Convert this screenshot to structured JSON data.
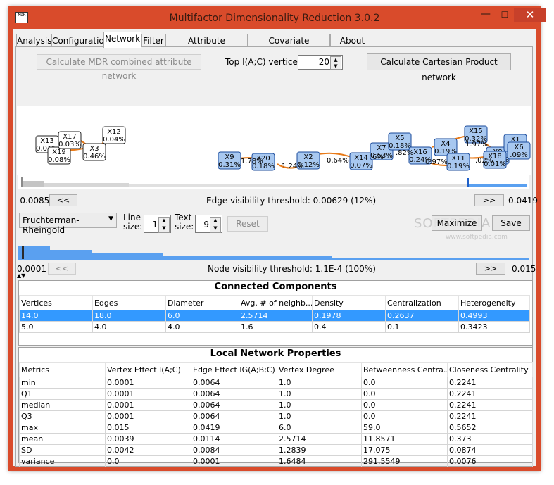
{
  "window": {
    "icon_text": "MDR",
    "title": "Multifactor Dimensionality Reduction 3.0.2",
    "minimize_glyph": "—",
    "maximize_glyph": "☐",
    "close_glyph": "✕"
  },
  "tabs": [
    {
      "label": "Analysis"
    },
    {
      "label": "Configuration"
    },
    {
      "label": "Network",
      "active": true
    },
    {
      "label": "Filter"
    },
    {
      "label": "Attribute Construction"
    },
    {
      "label": "Covariate Adjustment"
    },
    {
      "label": "About MDR"
    }
  ],
  "network": {
    "combined_button": "Calculate MDR combined attribute network",
    "top_vertices_label": "Top I(A;C) vertices:",
    "top_vertices_value": "20",
    "cartesian_button": "Calculate Cartesian Product network",
    "nodes": [
      {
        "name": "X13",
        "value": "0.01%"
      },
      {
        "name": "X19",
        "value": "0.08%"
      },
      {
        "name": "X17",
        "value": "0.03%"
      },
      {
        "name": "X3",
        "value": "0.46%"
      },
      {
        "name": "X12",
        "value": "0.04%"
      },
      {
        "name": "X9",
        "value": "0.31%"
      },
      {
        "name": "X20",
        "value": "0.18%"
      },
      {
        "name": "X2",
        "value": "0.12%"
      },
      {
        "name": "X14",
        "value": "0.07%"
      },
      {
        "name": "X7",
        "value": "0.53%"
      },
      {
        "name": "X5",
        "value": "0.18%"
      },
      {
        "name": "X16",
        "value": "0.24%"
      },
      {
        "name": "X4",
        "value": "0.19%"
      },
      {
        "name": "X15",
        "value": "0.32%"
      },
      {
        "name": "X11",
        "value": "0.19%"
      },
      {
        "name": "X8",
        "value": "0.52%"
      },
      {
        "name": "X18",
        "value": "0.01%"
      },
      {
        "name": "X1",
        "value": "0.0"
      },
      {
        "name": "X6",
        "value": ".09%"
      }
    ],
    "edge_labels": [
      "1.78%",
      "1.24%",
      "0.64%",
      "6%",
      ".82%",
      "0.97%",
      "1.97%",
      ".02%"
    ],
    "edge_min": "-0.0085",
    "edge_max": "0.0419",
    "edge_threshold_text": "Edge visibility threshold: 0.00629 (12%)",
    "prev_button": "<<",
    "next_button": ">>",
    "layout_select": "Fruchterman-Rheingold",
    "line_size_label": "Line size:",
    "line_size_value": "1",
    "text_size_label": "Text size:",
    "text_size_value": "9",
    "reset_button": "Reset",
    "maximize_button": "Maximize",
    "save_button": "Save",
    "node_min": "0.0001",
    "node_max": "0.015",
    "node_threshold_text": "Node visibility threshold: 1.1E-4 (100%)",
    "watermark": "SOFTPEDIA",
    "watermark_url": "www.softpedia.com",
    "colors": {
      "edge": "#e87a18",
      "node_fill": "#a8c8f0",
      "node_border": "#1a4a9a",
      "accent": "#3399ff"
    }
  },
  "connected_components": {
    "title": "Connected Components",
    "columns": [
      "Vertices",
      "Edges",
      "Diameter",
      "Avg. # of neighb...",
      "Density",
      "Centralization",
      "Heterogeneity"
    ],
    "rows": [
      [
        "14.0",
        "18.0",
        "6.0",
        "2.5714",
        "0.1978",
        "0.2637",
        "0.4993"
      ],
      [
        "5.0",
        "4.0",
        "4.0",
        "1.6",
        "0.4",
        "0.1",
        "0.3423"
      ]
    ]
  },
  "local_properties": {
    "title": "Local Network Properties",
    "columns": [
      "Metrics",
      "Vertex Effect I(A;C)",
      "Edge Effect IG(A;B;C)",
      "Vertex Degree",
      "Betweenness Centra...",
      "Closeness Centrality"
    ],
    "rows": [
      [
        "min",
        "0.0001",
        "0.0064",
        "1.0",
        "0.0",
        "0.2241"
      ],
      [
        "Q1",
        "0.0001",
        "0.0064",
        "1.0",
        "0.0",
        "0.2241"
      ],
      [
        "median",
        "0.0001",
        "0.0064",
        "1.0",
        "0.0",
        "0.2241"
      ],
      [
        "Q3",
        "0.0001",
        "0.0064",
        "1.0",
        "0.0",
        "0.2241"
      ],
      [
        "max",
        "0.015",
        "0.0419",
        "6.0",
        "59.0",
        "0.5652"
      ],
      [
        "mean",
        "0.0039",
        "0.0114",
        "2.5714",
        "11.8571",
        "0.373"
      ],
      [
        "SD",
        "0.0042",
        "0.0084",
        "1.2839",
        "17.075",
        "0.0874"
      ],
      [
        "variance",
        "0.0",
        "0.0001",
        "1.6484",
        "291.5549",
        "0.0076"
      ]
    ]
  }
}
